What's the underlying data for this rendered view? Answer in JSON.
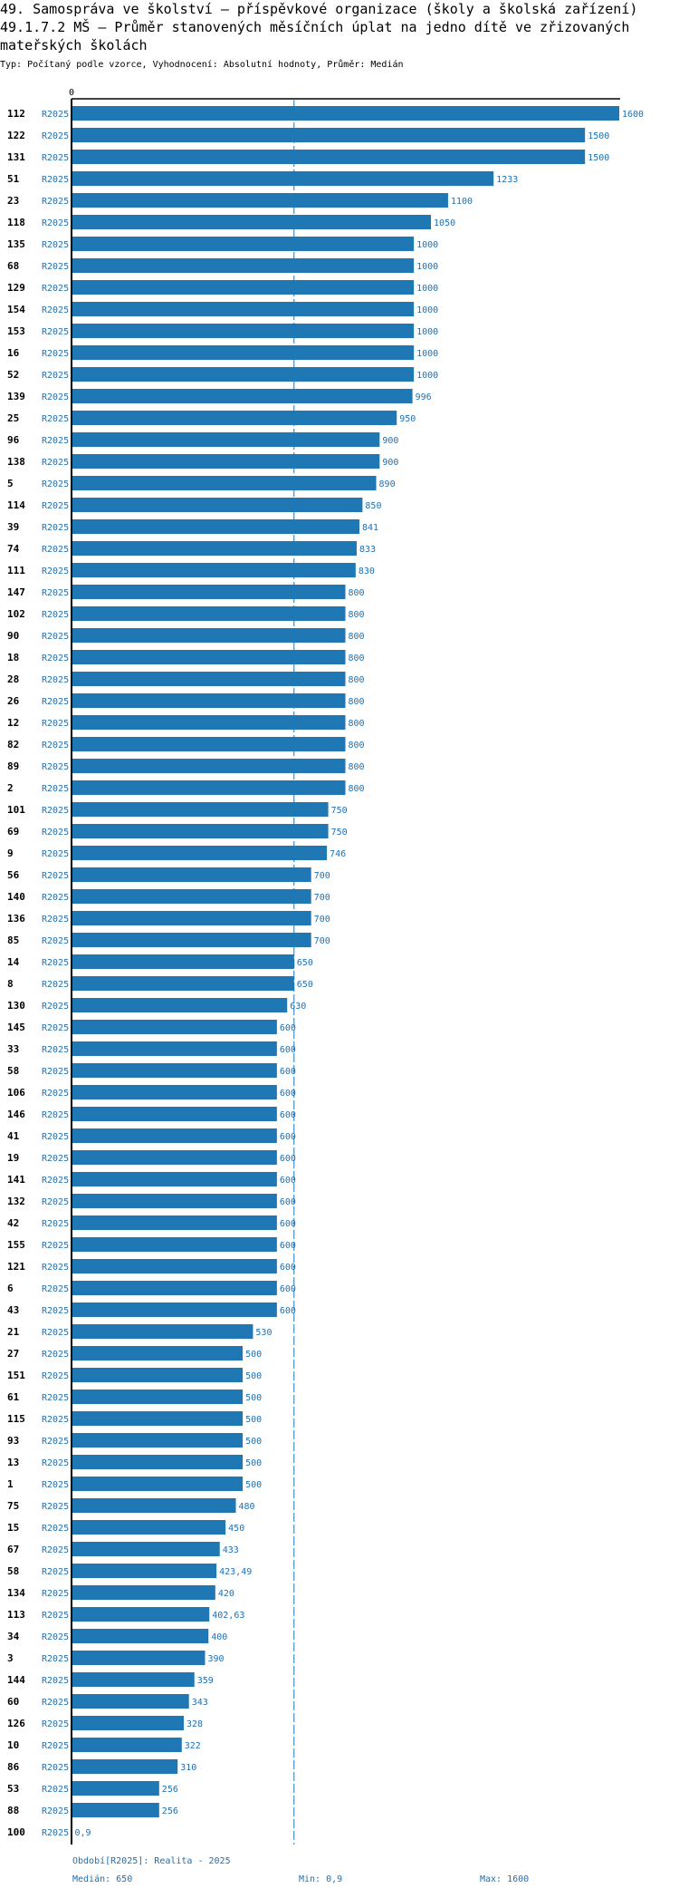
{
  "header": {
    "title_line1": "49. Samospráva ve školství – příspěvkové organizace (školy a školská zařízení)",
    "title_line2": "49.1.7.2 MŠ – Průměr stanovených měsíčních úplat na jedno dítě ve zřizovaných mateřských školách",
    "subtitle": "Typ: Počítaný podle vzorce, Vyhodnocení: Absolutní hodnoty, Průměr: Medián"
  },
  "colors": {
    "bar": "#1f77b4",
    "value_text": "#1f6fb2",
    "axis": "#000000"
  },
  "chart_data": {
    "type": "bar",
    "orientation": "horizontal",
    "axis_zero_label": "0",
    "xlim": [
      0,
      1600
    ],
    "median_line": 650,
    "series_name": "R2025",
    "categories": [
      "112",
      "122",
      "131",
      "51",
      "23",
      "118",
      "135",
      "68",
      "129",
      "154",
      "153",
      "16",
      "52",
      "139",
      "25",
      "96",
      "138",
      "5",
      "114",
      "39",
      "74",
      "111",
      "147",
      "102",
      "90",
      "18",
      "28",
      "26",
      "12",
      "82",
      "89",
      "2",
      "101",
      "69",
      "9",
      "56",
      "140",
      "136",
      "85",
      "14",
      "8",
      "130",
      "145",
      "33",
      "58",
      "106",
      "146",
      "41",
      "19",
      "141",
      "132",
      "42",
      "155",
      "121",
      "6",
      "43",
      "21",
      "27",
      "151",
      "61",
      "115",
      "93",
      "13",
      "1",
      "75",
      "15",
      "67",
      "58",
      "134",
      "113",
      "34",
      "3",
      "144",
      "60",
      "126",
      "10",
      "86",
      "53",
      "88",
      "100"
    ],
    "values": [
      1600,
      1500,
      1500,
      1233,
      1100,
      1050,
      1000,
      1000,
      1000,
      1000,
      1000,
      1000,
      1000,
      996,
      950,
      900,
      900,
      890,
      850,
      841,
      833,
      830,
      800,
      800,
      800,
      800,
      800,
      800,
      800,
      800,
      800,
      800,
      750,
      750,
      746,
      700,
      700,
      700,
      700,
      650,
      650,
      630,
      600,
      600,
      600,
      600,
      600,
      600,
      600,
      600,
      600,
      600,
      600,
      600,
      600,
      600,
      530,
      500,
      500,
      500,
      500,
      500,
      500,
      500,
      480,
      450,
      433,
      423.49,
      420,
      402.63,
      400,
      390,
      359,
      343,
      328,
      322,
      310,
      256,
      256,
      0.9
    ],
    "value_labels": [
      "1600",
      "1500",
      "1500",
      "1233",
      "1100",
      "1050",
      "1000",
      "1000",
      "1000",
      "1000",
      "1000",
      "1000",
      "1000",
      "996",
      "950",
      "900",
      "900",
      "890",
      "850",
      "841",
      "833",
      "830",
      "800",
      "800",
      "800",
      "800",
      "800",
      "800",
      "800",
      "800",
      "800",
      "800",
      "750",
      "750",
      "746",
      "700",
      "700",
      "700",
      "700",
      "650",
      "650",
      "630",
      "600",
      "600",
      "600",
      "600",
      "600",
      "600",
      "600",
      "600",
      "600",
      "600",
      "600",
      "600",
      "600",
      "600",
      "530",
      "500",
      "500",
      "500",
      "500",
      "500",
      "500",
      "500",
      "480",
      "450",
      "433",
      "423,49",
      "420",
      "402,63",
      "400",
      "390",
      "359",
      "343",
      "328",
      "322",
      "310",
      "256",
      "256",
      "0,9"
    ]
  },
  "footer": {
    "period": "Období[R2025]: Realita - 2025",
    "median": "Medián: 650",
    "min": "Min: 0,9",
    "max": "Max: 1600"
  }
}
